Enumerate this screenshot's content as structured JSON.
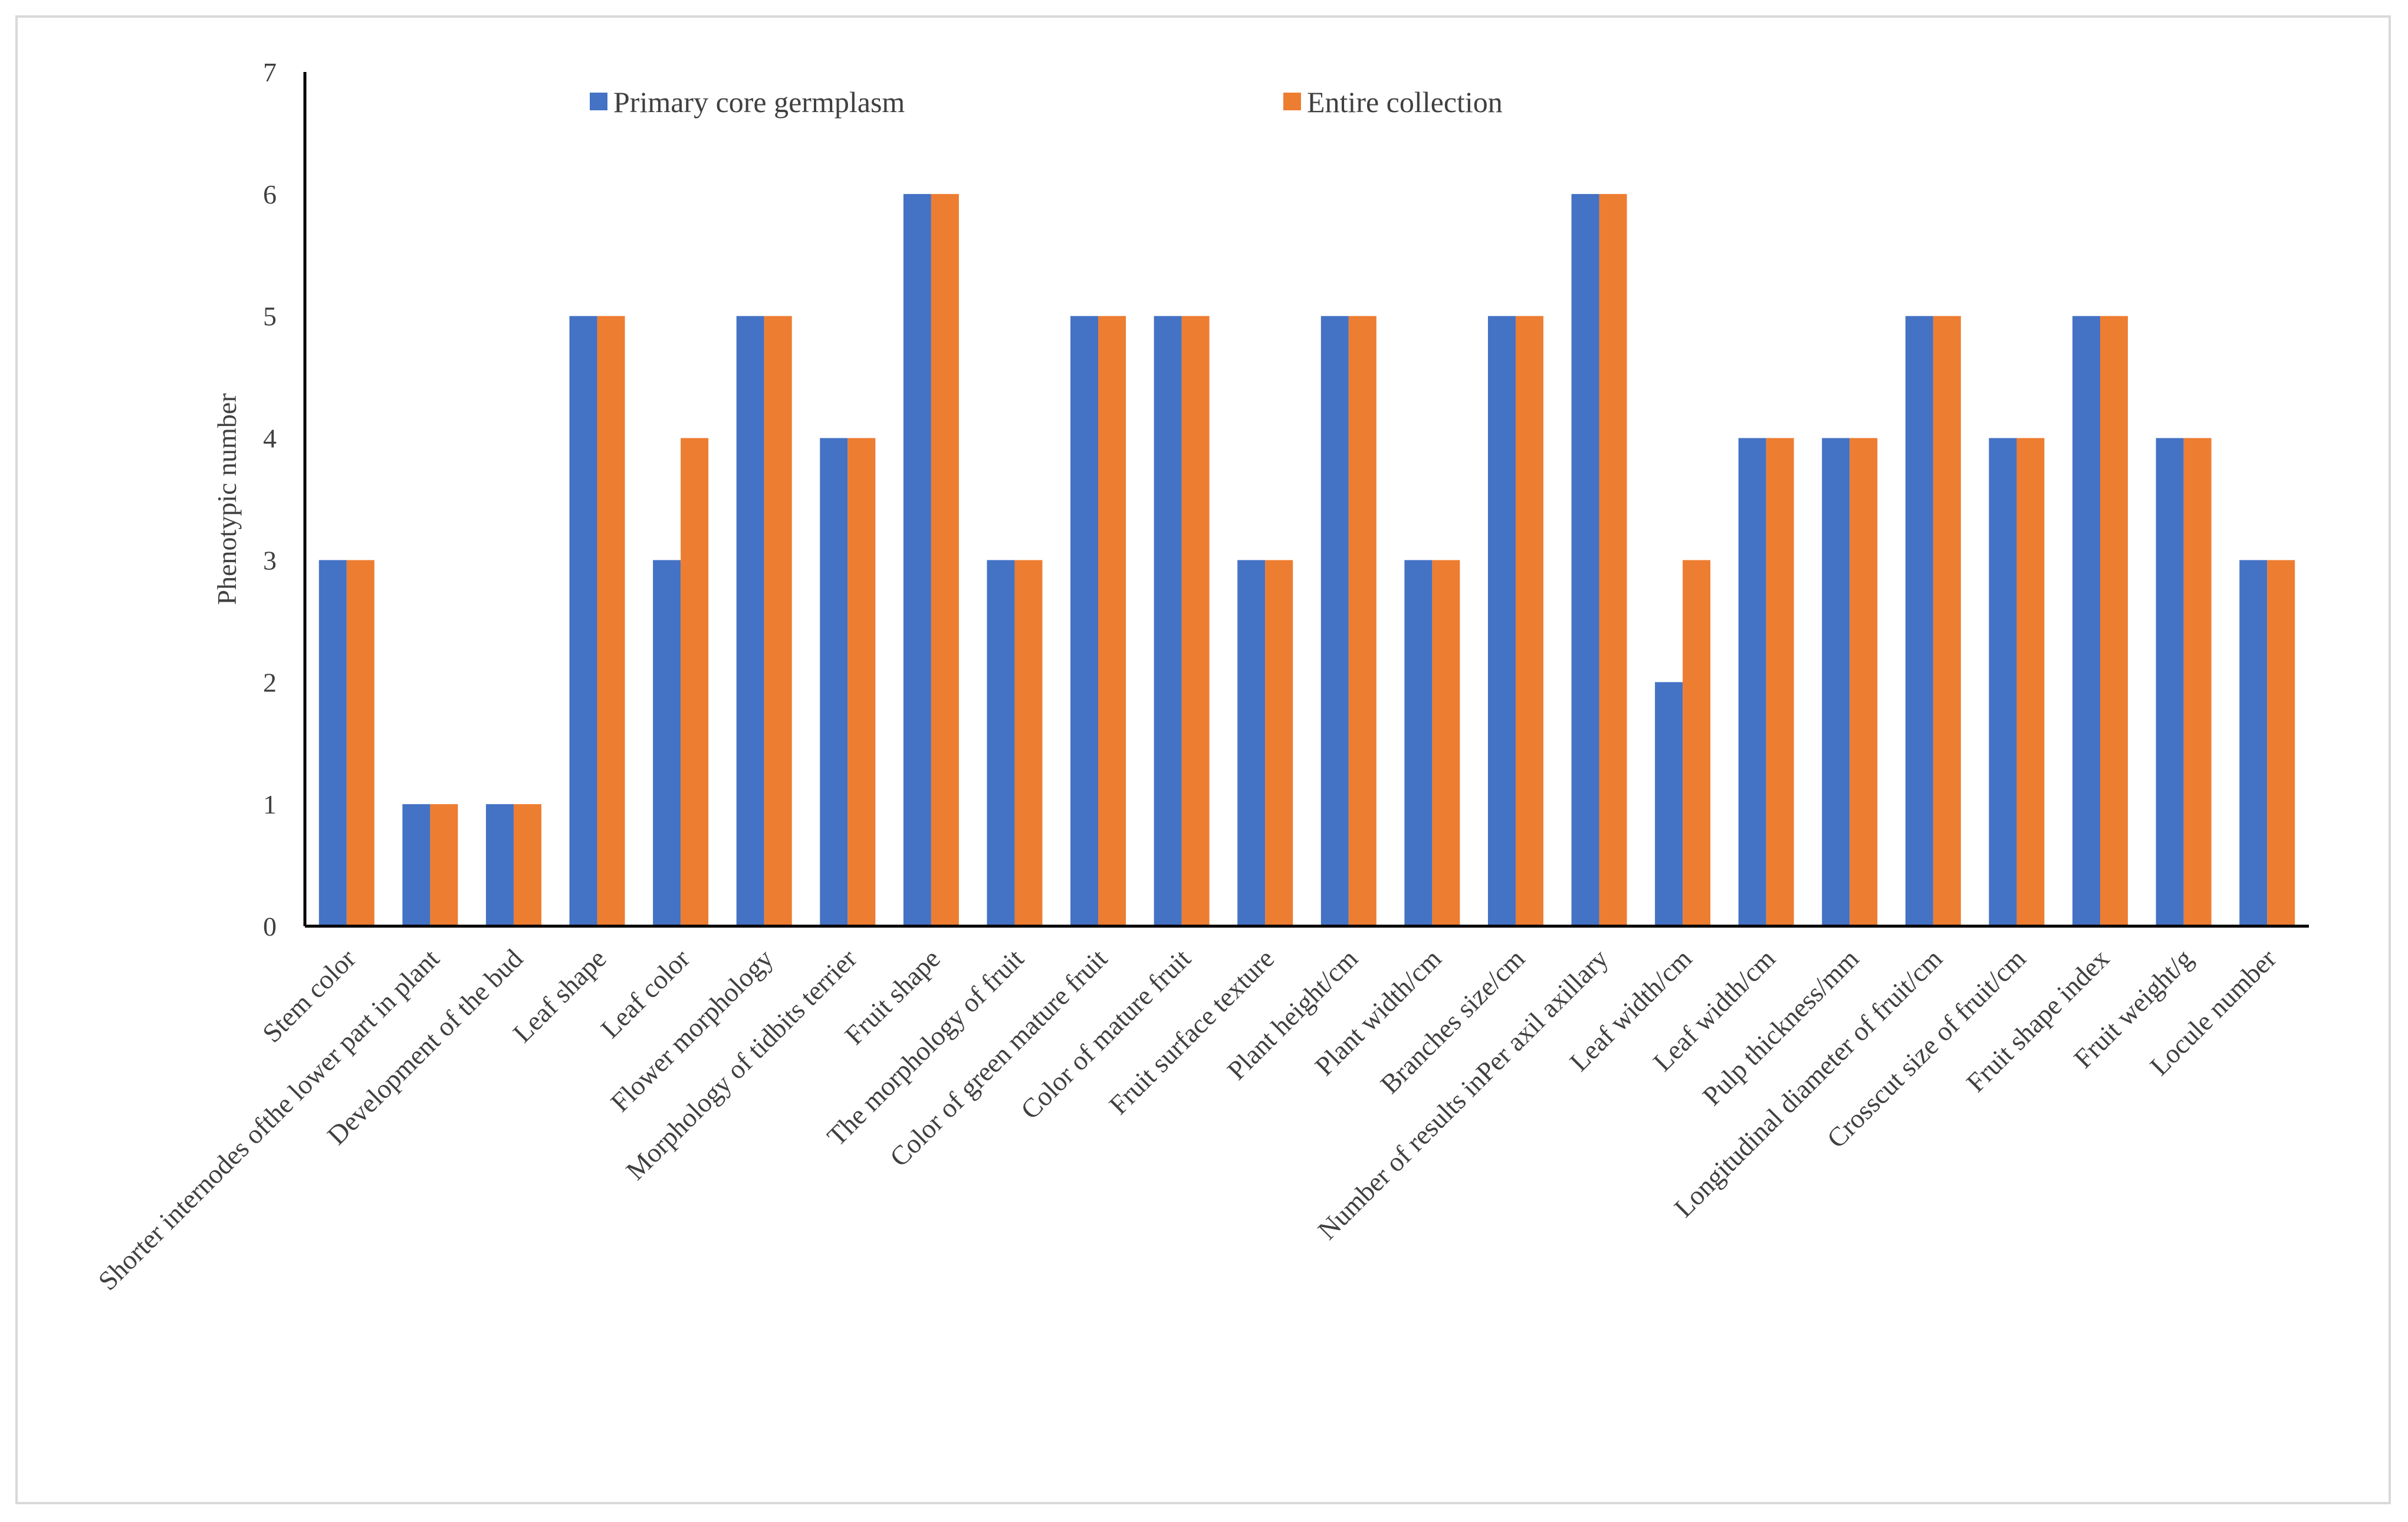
{
  "chart_data": {
    "type": "bar",
    "title": "",
    "xlabel": "",
    "ylabel": "Phenotypic number",
    "ylim": [
      0,
      7
    ],
    "yticks": [
      0,
      1,
      2,
      3,
      4,
      5,
      6,
      7
    ],
    "grid": false,
    "legend_position": "top",
    "categories": [
      "Stem color",
      "Shorter internodes ofthe lower part in plant",
      "Development of the bud",
      "Leaf shape",
      "Leaf color",
      "Flower morphology",
      "Morphology of tidbits terrier",
      "Fruit shape",
      "The morphology of fruit",
      "Color of green mature fruit",
      "Color of mature fruit",
      "Fruit surface texture",
      "Plant height/cm",
      "Plant width/cm",
      "Branches size/cm",
      "Number of results inPer axil axillary",
      "Leaf width/cm",
      "Leaf width/cm",
      "Pulp thickness/mm",
      "Longitudinal diameter of fruit/cm",
      "Crosscut size of fruit/cm",
      "Fruit shape index",
      "Fruit weight/g",
      "Locule number"
    ],
    "series": [
      {
        "name": "Primary core germplasm",
        "color": "#4472c4",
        "values": [
          3,
          1,
          1,
          5,
          3,
          5,
          4,
          6,
          3,
          5,
          5,
          3,
          5,
          3,
          5,
          6,
          2,
          4,
          4,
          5,
          4,
          5,
          4,
          3
        ]
      },
      {
        "name": "Entire collection",
        "color": "#ed7d31",
        "values": [
          3,
          1,
          1,
          5,
          4,
          5,
          4,
          6,
          3,
          5,
          5,
          3,
          5,
          3,
          5,
          6,
          3,
          4,
          4,
          5,
          4,
          5,
          4,
          3
        ]
      }
    ]
  }
}
